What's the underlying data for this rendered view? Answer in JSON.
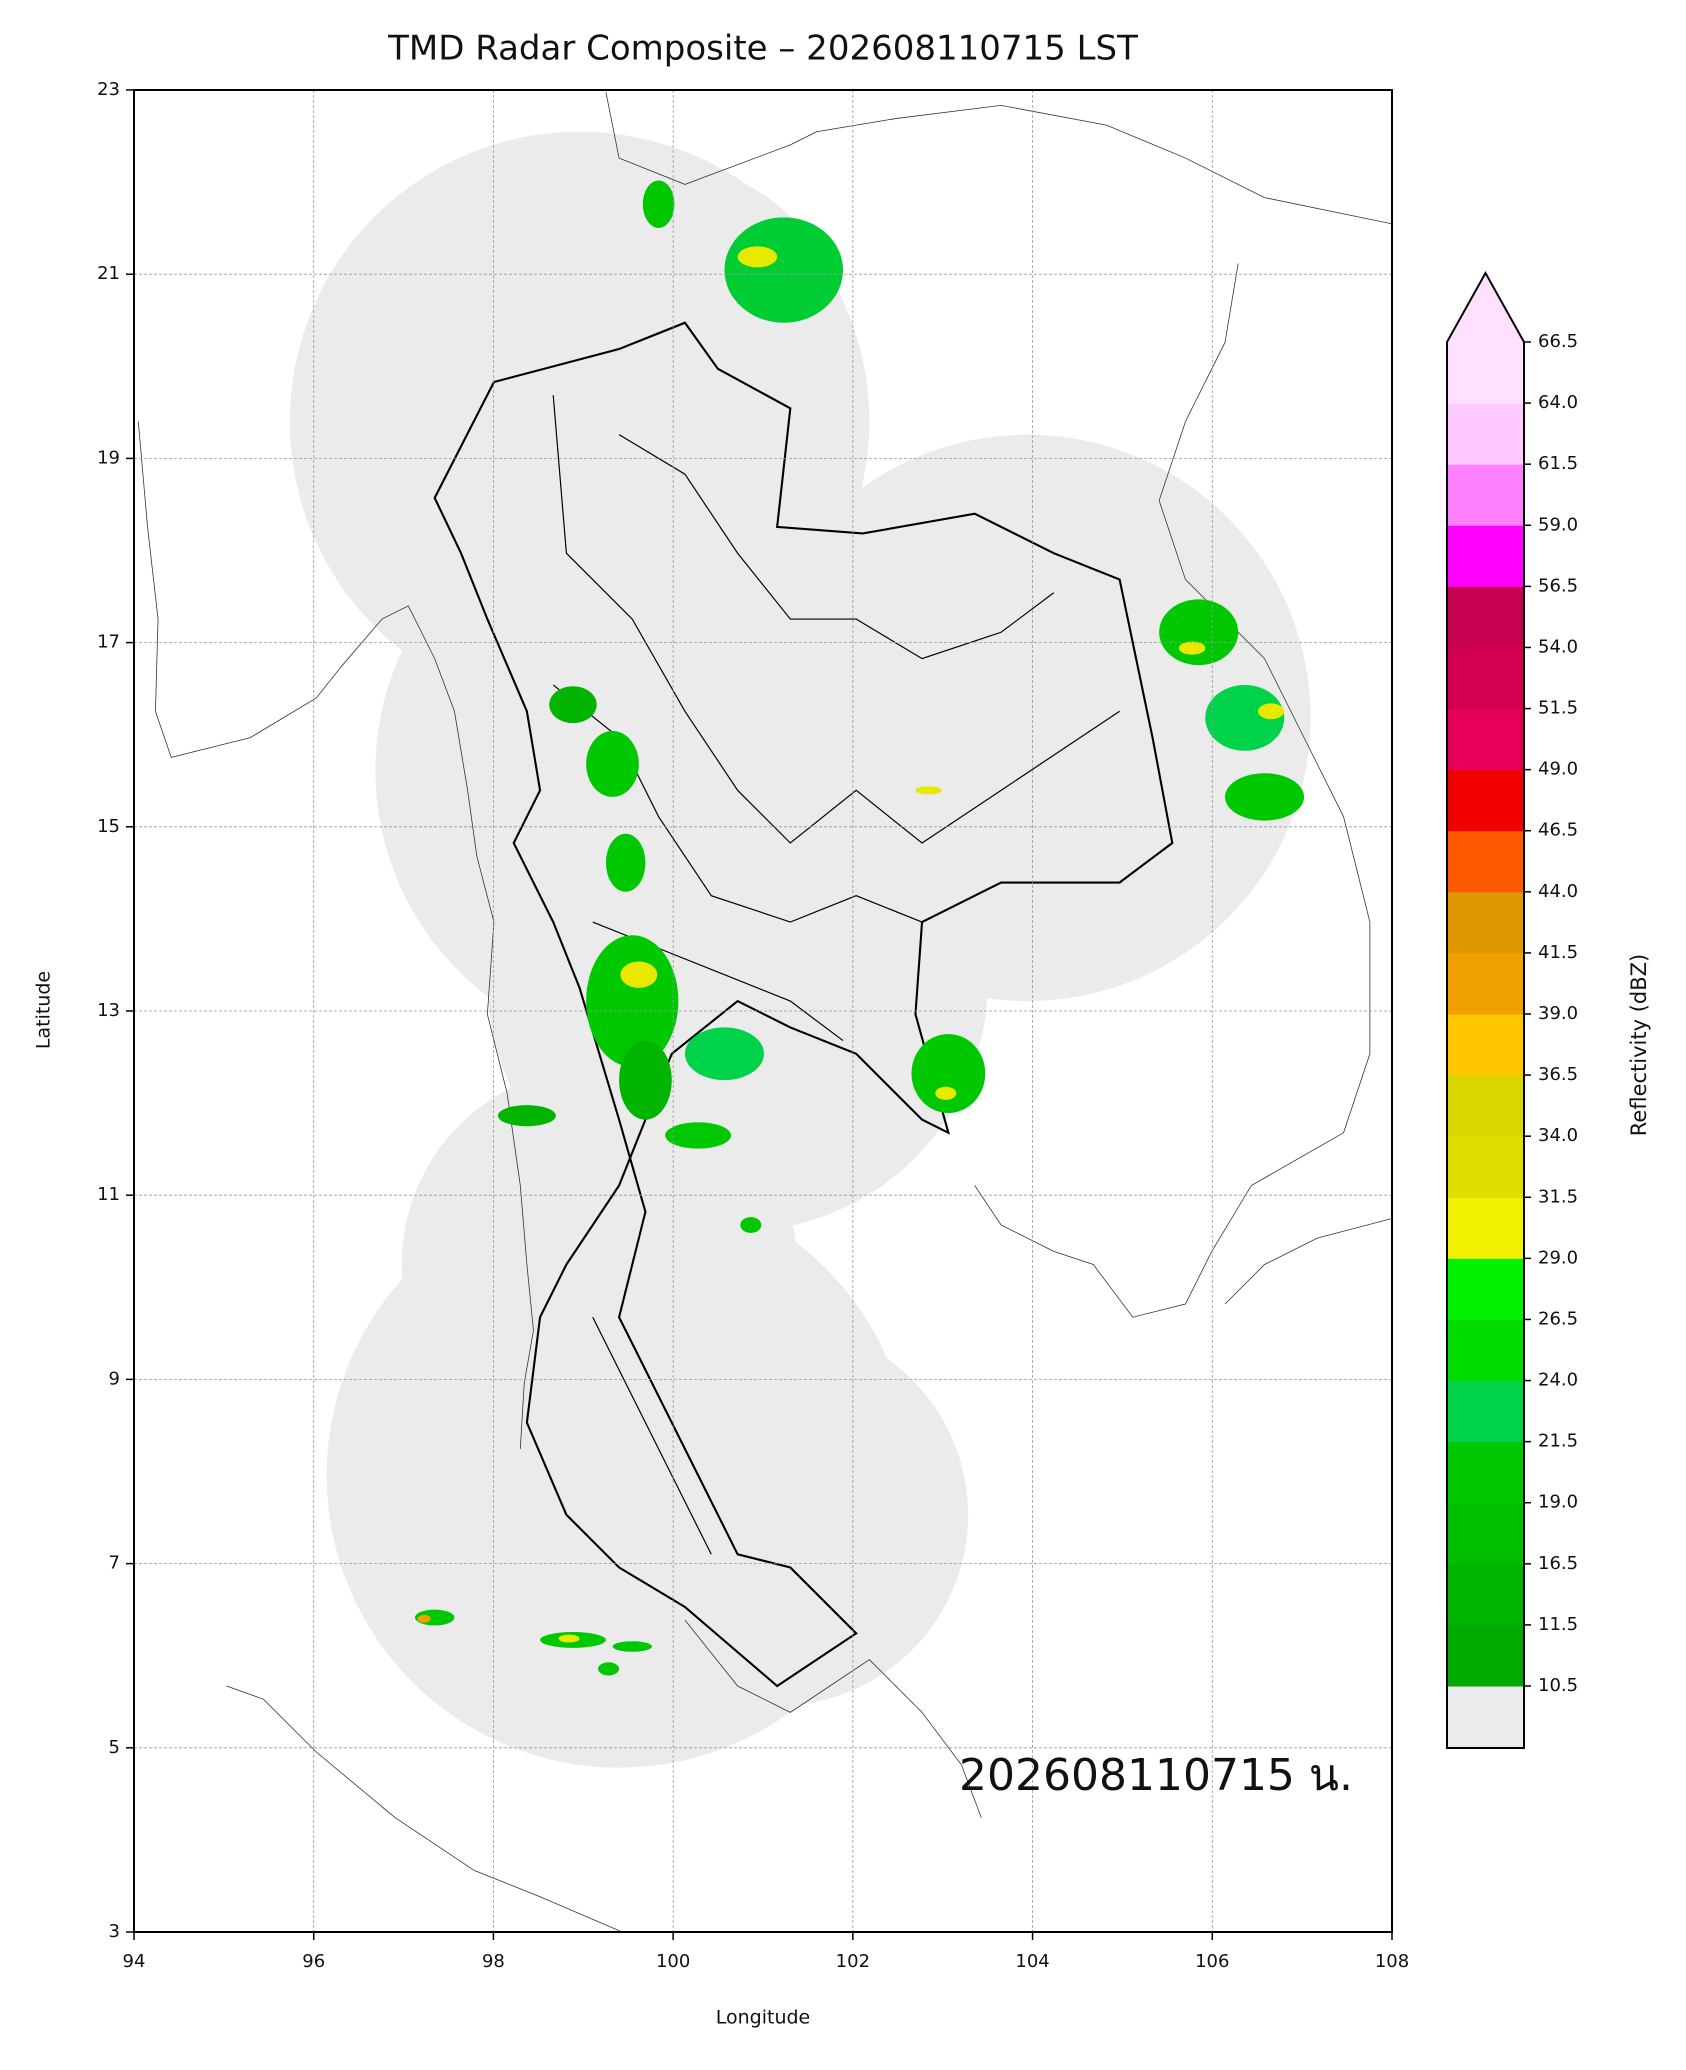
{
  "chart_data": {
    "type": "radar-map",
    "title": "TMD Radar Composite – 202608110715 LST",
    "x_label": "Longitude",
    "y_label": "Latitude",
    "xlim": [
      94,
      108
    ],
    "ylim": [
      3,
      23
    ],
    "xticks": [
      94,
      96,
      98,
      100,
      102,
      104,
      106,
      108
    ],
    "yticks": [
      3,
      5,
      7,
      9,
      11,
      13,
      15,
      17,
      19,
      21,
      23
    ],
    "grid": true,
    "annotation": "202608110715 น.",
    "colorbar": {
      "label": "Reflectivity (dBZ)",
      "levels": [
        10.5,
        11.5,
        16.5,
        19.0,
        21.5,
        24.0,
        26.5,
        29.0,
        31.5,
        34.0,
        36.5,
        39.0,
        41.5,
        44.0,
        46.5,
        49.0,
        51.5,
        54.0,
        56.5,
        59.0,
        61.5,
        64.0,
        66.5
      ],
      "level_labels": [
        "10.5",
        "11.5",
        "16.5",
        "19.0",
        "21.5",
        "24.0",
        "26.5",
        "29.0",
        "31.5",
        "34.0",
        "36.5",
        "39.0",
        "41.5",
        "44.0",
        "46.5",
        "49.0",
        "51.5",
        "54.0",
        "56.5",
        "59.0",
        "61.5",
        "64.0",
        "66.5"
      ],
      "colors": [
        "#00aa00",
        "#00b400",
        "#00be00",
        "#00c800",
        "#00d24a",
        "#00dc00",
        "#00f000",
        "#f0f000",
        "#e0dc00",
        "#d8d800",
        "#ffc800",
        "#f0a000",
        "#e09800",
        "#ff5a00",
        "#f00000",
        "#e6005a",
        "#d2004e",
        "#c80050",
        "#ff00ff",
        "#ff80ff",
        "#ffc8ff",
        "#ffe0ff"
      ],
      "under_color": "#ebebeb",
      "over_color": "#ffe0ff"
    }
  }
}
